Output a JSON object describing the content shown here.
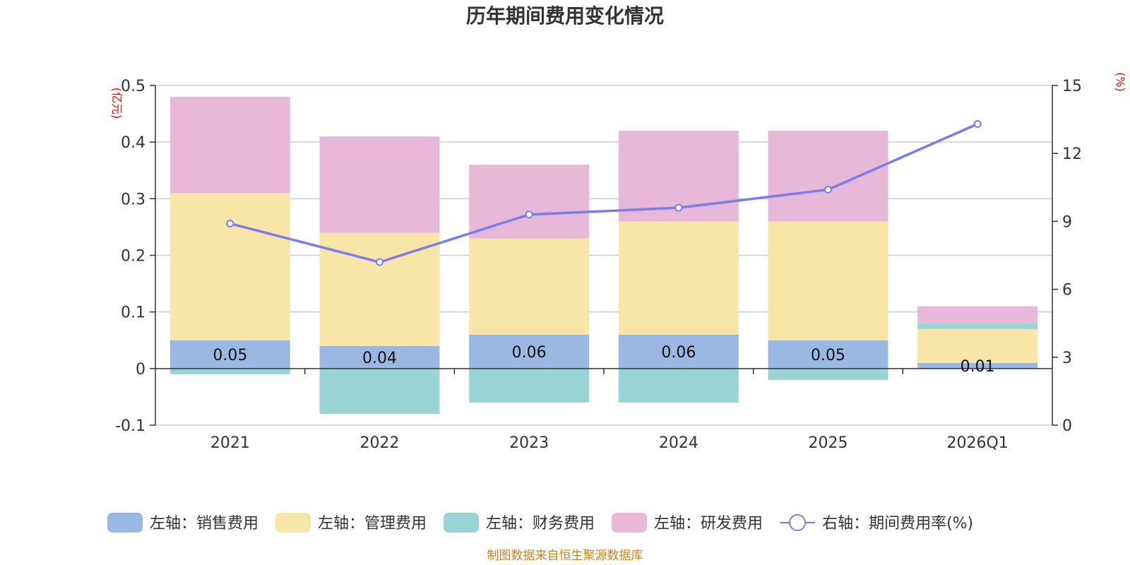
{
  "chart_data": {
    "type": "bar",
    "title": "历年期间费用变化情况",
    "categories": [
      "2021",
      "2022",
      "2023",
      "2024",
      "2025",
      "2026Q1"
    ],
    "left_axis": {
      "unit": "(亿元)",
      "ylim": [
        -0.1,
        0.5
      ],
      "ticks": [
        "-0.1",
        "0",
        "0.1",
        "0.2",
        "0.3",
        "0.4",
        "0.5"
      ]
    },
    "right_axis": {
      "unit": "(%)",
      "ylim": [
        0,
        15
      ],
      "ticks": [
        "0",
        "3",
        "6",
        "9",
        "12",
        "15"
      ]
    },
    "series": [
      {
        "name": "左轴：销售费用",
        "axis": "left",
        "kind": "bar",
        "color": "#9bb8e2",
        "values": [
          0.05,
          0.04,
          0.06,
          0.06,
          0.05,
          0.01
        ],
        "labels": [
          "0.05",
          "0.04",
          "0.06",
          "0.06",
          "0.05",
          "0.01"
        ]
      },
      {
        "name": "左轴：管理费用",
        "axis": "left",
        "kind": "bar",
        "color": "#f8e6a8",
        "values": [
          0.26,
          0.2,
          0.17,
          0.2,
          0.21,
          0.06
        ]
      },
      {
        "name": "左轴：财务费用",
        "axis": "left",
        "kind": "bar",
        "color": "#98d4d6",
        "values": [
          -0.01,
          -0.08,
          -0.06,
          -0.06,
          -0.02,
          0.01
        ]
      },
      {
        "name": "左轴：研发费用",
        "axis": "left",
        "kind": "bar",
        "color": "#e8b8d9",
        "values": [
          0.17,
          0.17,
          0.13,
          0.16,
          0.16,
          0.03
        ]
      },
      {
        "name": "右轴：期间费用率(%)",
        "axis": "right",
        "kind": "line",
        "color": "#7b7cf0",
        "values": [
          8.9,
          7.2,
          9.3,
          9.6,
          10.4,
          13.3
        ]
      }
    ],
    "source": "制图数据来自恒生聚源数据库"
  }
}
